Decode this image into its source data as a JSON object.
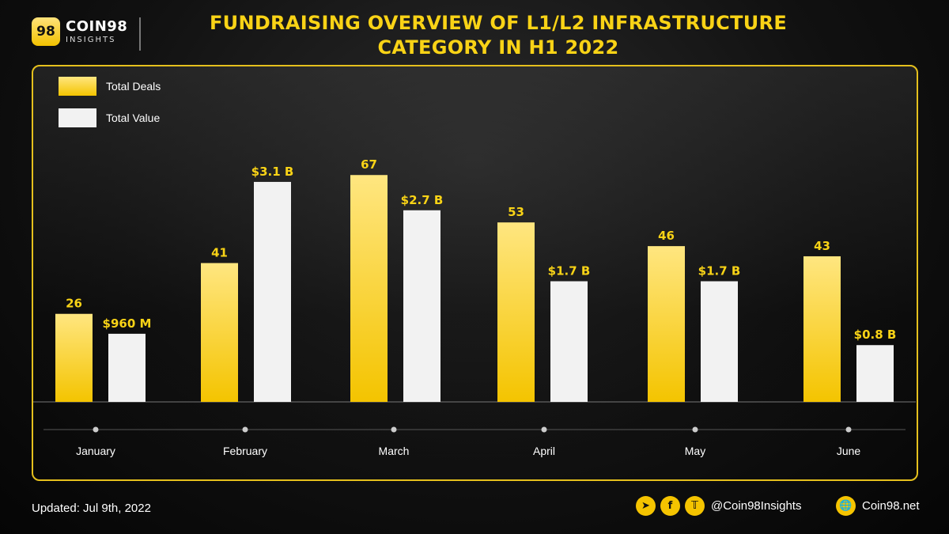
{
  "brand": {
    "mark": "98",
    "name": "COIN98",
    "sub": "INSIGHTS"
  },
  "title": "FUNDRAISING OVERVIEW OF L1/L2 INFRASTRUCTURE CATEGORY IN H1 2022",
  "colors": {
    "accent": "#f5c400",
    "deals_top": "#ffe680",
    "deals_bottom": "#f4c400",
    "value_bar": "#f2f2f2",
    "label": "#f9d316"
  },
  "chart_data": {
    "type": "bar",
    "categories": [
      "January",
      "February",
      "March",
      "April",
      "May",
      "June"
    ],
    "series": [
      {
        "name": "Total Deals",
        "values": [
          26,
          41,
          67,
          53,
          46,
          43
        ],
        "labels": [
          "26",
          "41",
          "67",
          "53",
          "46",
          "43"
        ]
      },
      {
        "name": "Total Value",
        "values": [
          960,
          3100,
          2700,
          1700,
          1700,
          800
        ],
        "labels": [
          "$960 M",
          "$3.1 B",
          "$2.7 B",
          "$1.7 B",
          "$1.7 B",
          "$0.8 B"
        ]
      }
    ],
    "legend_position": "top-left",
    "grid": false
  },
  "footer": {
    "updated": "Updated: Jul 9th, 2022",
    "handle": "@Coin98Insights",
    "website": "Coin98.net",
    "icons": [
      "telegram-icon",
      "facebook-icon",
      "twitter-icon",
      "globe-icon"
    ]
  }
}
